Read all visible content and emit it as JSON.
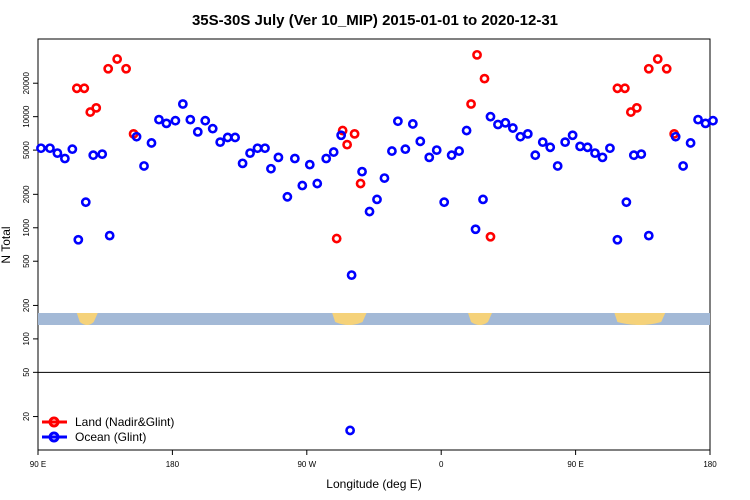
{
  "chart_data": {
    "type": "scatter",
    "title": "35S-30S July (Ver 10_MIP)   2015-01-01 to 2020-12-31",
    "xlabel": "Longitude (deg E)",
    "ylabel": "N Total",
    "y_scale": "log",
    "ylim": [
      10,
      50000
    ],
    "x_ticks": [
      {
        "value": 90,
        "label": "90 E"
      },
      {
        "value": 180,
        "label": "180"
      },
      {
        "value": 270,
        "label": "90 W"
      },
      {
        "value": 360,
        "label": "0"
      },
      {
        "value": 450,
        "label": "90 E"
      },
      {
        "value": 540,
        "label": "180"
      }
    ],
    "y_ticks": [
      {
        "value": 20,
        "label": "20"
      },
      {
        "value": 50,
        "label": "50"
      },
      {
        "value": 100,
        "label": "100"
      },
      {
        "value": 200,
        "label": "200"
      },
      {
        "value": 500,
        "label": "500"
      },
      {
        "value": 1000,
        "label": "1000"
      },
      {
        "value": 2000,
        "label": "2000"
      },
      {
        "value": 5000,
        "label": "5000"
      },
      {
        "value": 10000,
        "label": "10000"
      },
      {
        "value": 20000,
        "label": "20000"
      }
    ],
    "reference_line": 50,
    "land_strip": {
      "band_color": "#a3b9d6",
      "land_color": "#f5d27a",
      "land_segments": [
        [
          116,
          130
        ],
        [
          287,
          310
        ],
        [
          378,
          394
        ],
        [
          476,
          510
        ]
      ]
    },
    "series": [
      {
        "name": "Land (Nadir&Glint)",
        "color": "#ff0000",
        "points": [
          [
            116,
            18000
          ],
          [
            121,
            18000
          ],
          [
            125,
            11000
          ],
          [
            129,
            12000
          ],
          [
            137,
            27000
          ],
          [
            143,
            33000
          ],
          [
            149,
            27000
          ],
          [
            154,
            7000
          ],
          [
            290,
            800
          ],
          [
            294,
            7500
          ],
          [
            297,
            5600
          ],
          [
            302,
            7000
          ],
          [
            306,
            2500
          ],
          [
            380,
            13000
          ],
          [
            384,
            36000
          ],
          [
            389,
            22000
          ],
          [
            393,
            830
          ],
          [
            478,
            18000
          ],
          [
            483,
            18000
          ],
          [
            487,
            11000
          ],
          [
            491,
            12000
          ],
          [
            499,
            27000
          ],
          [
            505,
            33000
          ],
          [
            511,
            27000
          ],
          [
            516,
            7000
          ]
        ]
      },
      {
        "name": "Ocean (Glint)",
        "color": "#0000ff",
        "points": [
          [
            92,
            5200
          ],
          [
            98,
            5200
          ],
          [
            103,
            4700
          ],
          [
            108,
            4200
          ],
          [
            113,
            5100
          ],
          [
            117,
            780
          ],
          [
            122,
            1700
          ],
          [
            127,
            4500
          ],
          [
            133,
            4600
          ],
          [
            138,
            850
          ],
          [
            156,
            6600
          ],
          [
            161,
            3600
          ],
          [
            166,
            5800
          ],
          [
            171,
            9400
          ],
          [
            176,
            8700
          ],
          [
            182,
            9200
          ],
          [
            187,
            13000
          ],
          [
            192,
            9400
          ],
          [
            197,
            7300
          ],
          [
            202,
            9200
          ],
          [
            207,
            7800
          ],
          [
            212,
            5900
          ],
          [
            217,
            6500
          ],
          [
            222,
            6500
          ],
          [
            227,
            3800
          ],
          [
            232,
            4700
          ],
          [
            237,
            5200
          ],
          [
            242,
            5200
          ],
          [
            246,
            3400
          ],
          [
            251,
            4300
          ],
          [
            257,
            1900
          ],
          [
            262,
            4200
          ],
          [
            267,
            2400
          ],
          [
            272,
            3700
          ],
          [
            277,
            2500
          ],
          [
            283,
            4200
          ],
          [
            288,
            4800
          ],
          [
            293,
            6800
          ],
          [
            307,
            3200
          ],
          [
            312,
            1400
          ],
          [
            317,
            1800
          ],
          [
            322,
            2800
          ],
          [
            327,
            4900
          ],
          [
            331,
            9100
          ],
          [
            336,
            5100
          ],
          [
            341,
            8600
          ],
          [
            346,
            6000
          ],
          [
            352,
            4300
          ],
          [
            357,
            5000
          ],
          [
            362,
            1700
          ],
          [
            367,
            4500
          ],
          [
            372,
            4900
          ],
          [
            377,
            7500
          ],
          [
            383,
            970
          ],
          [
            388,
            1800
          ],
          [
            393,
            10000
          ],
          [
            398,
            8500
          ],
          [
            403,
            8800
          ],
          [
            408,
            7900
          ],
          [
            413,
            6600
          ],
          [
            418,
            7000
          ],
          [
            423,
            4500
          ],
          [
            428,
            5900
          ],
          [
            433,
            5300
          ],
          [
            438,
            3600
          ],
          [
            443,
            5900
          ],
          [
            448,
            6800
          ],
          [
            453,
            5400
          ],
          [
            458,
            5300
          ],
          [
            463,
            4700
          ],
          [
            468,
            4300
          ],
          [
            473,
            5200
          ],
          [
            478,
            780
          ],
          [
            484,
            1700
          ],
          [
            489,
            4500
          ],
          [
            494,
            4600
          ],
          [
            499,
            850
          ],
          [
            517,
            6600
          ],
          [
            522,
            3600
          ],
          [
            527,
            5800
          ],
          [
            532,
            9400
          ],
          [
            537,
            8700
          ],
          [
            542,
            9200
          ],
          [
            300,
            375
          ],
          [
            299,
            15
          ]
        ]
      }
    ]
  }
}
